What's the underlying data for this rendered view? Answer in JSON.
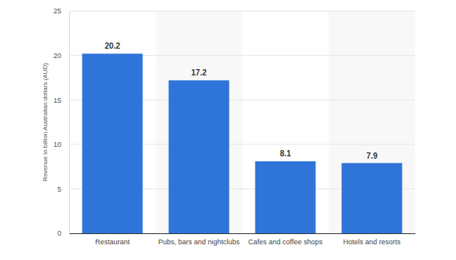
{
  "chart_data": {
    "type": "bar",
    "y_label": "Revenue in billion Australian dollars (AUD)",
    "categories": [
      "Restaurant",
      "Pubs, bars and nightclubs",
      "Cafes and coffee shops",
      "Hotels and resorts"
    ],
    "values": [
      20.2,
      17.2,
      8.1,
      7.9
    ],
    "color": "#2f74d9",
    "ylim": [
      0,
      25
    ],
    "yticks": [
      0,
      5,
      10,
      15,
      20,
      25
    ],
    "grid": true,
    "data_labels": true
  }
}
